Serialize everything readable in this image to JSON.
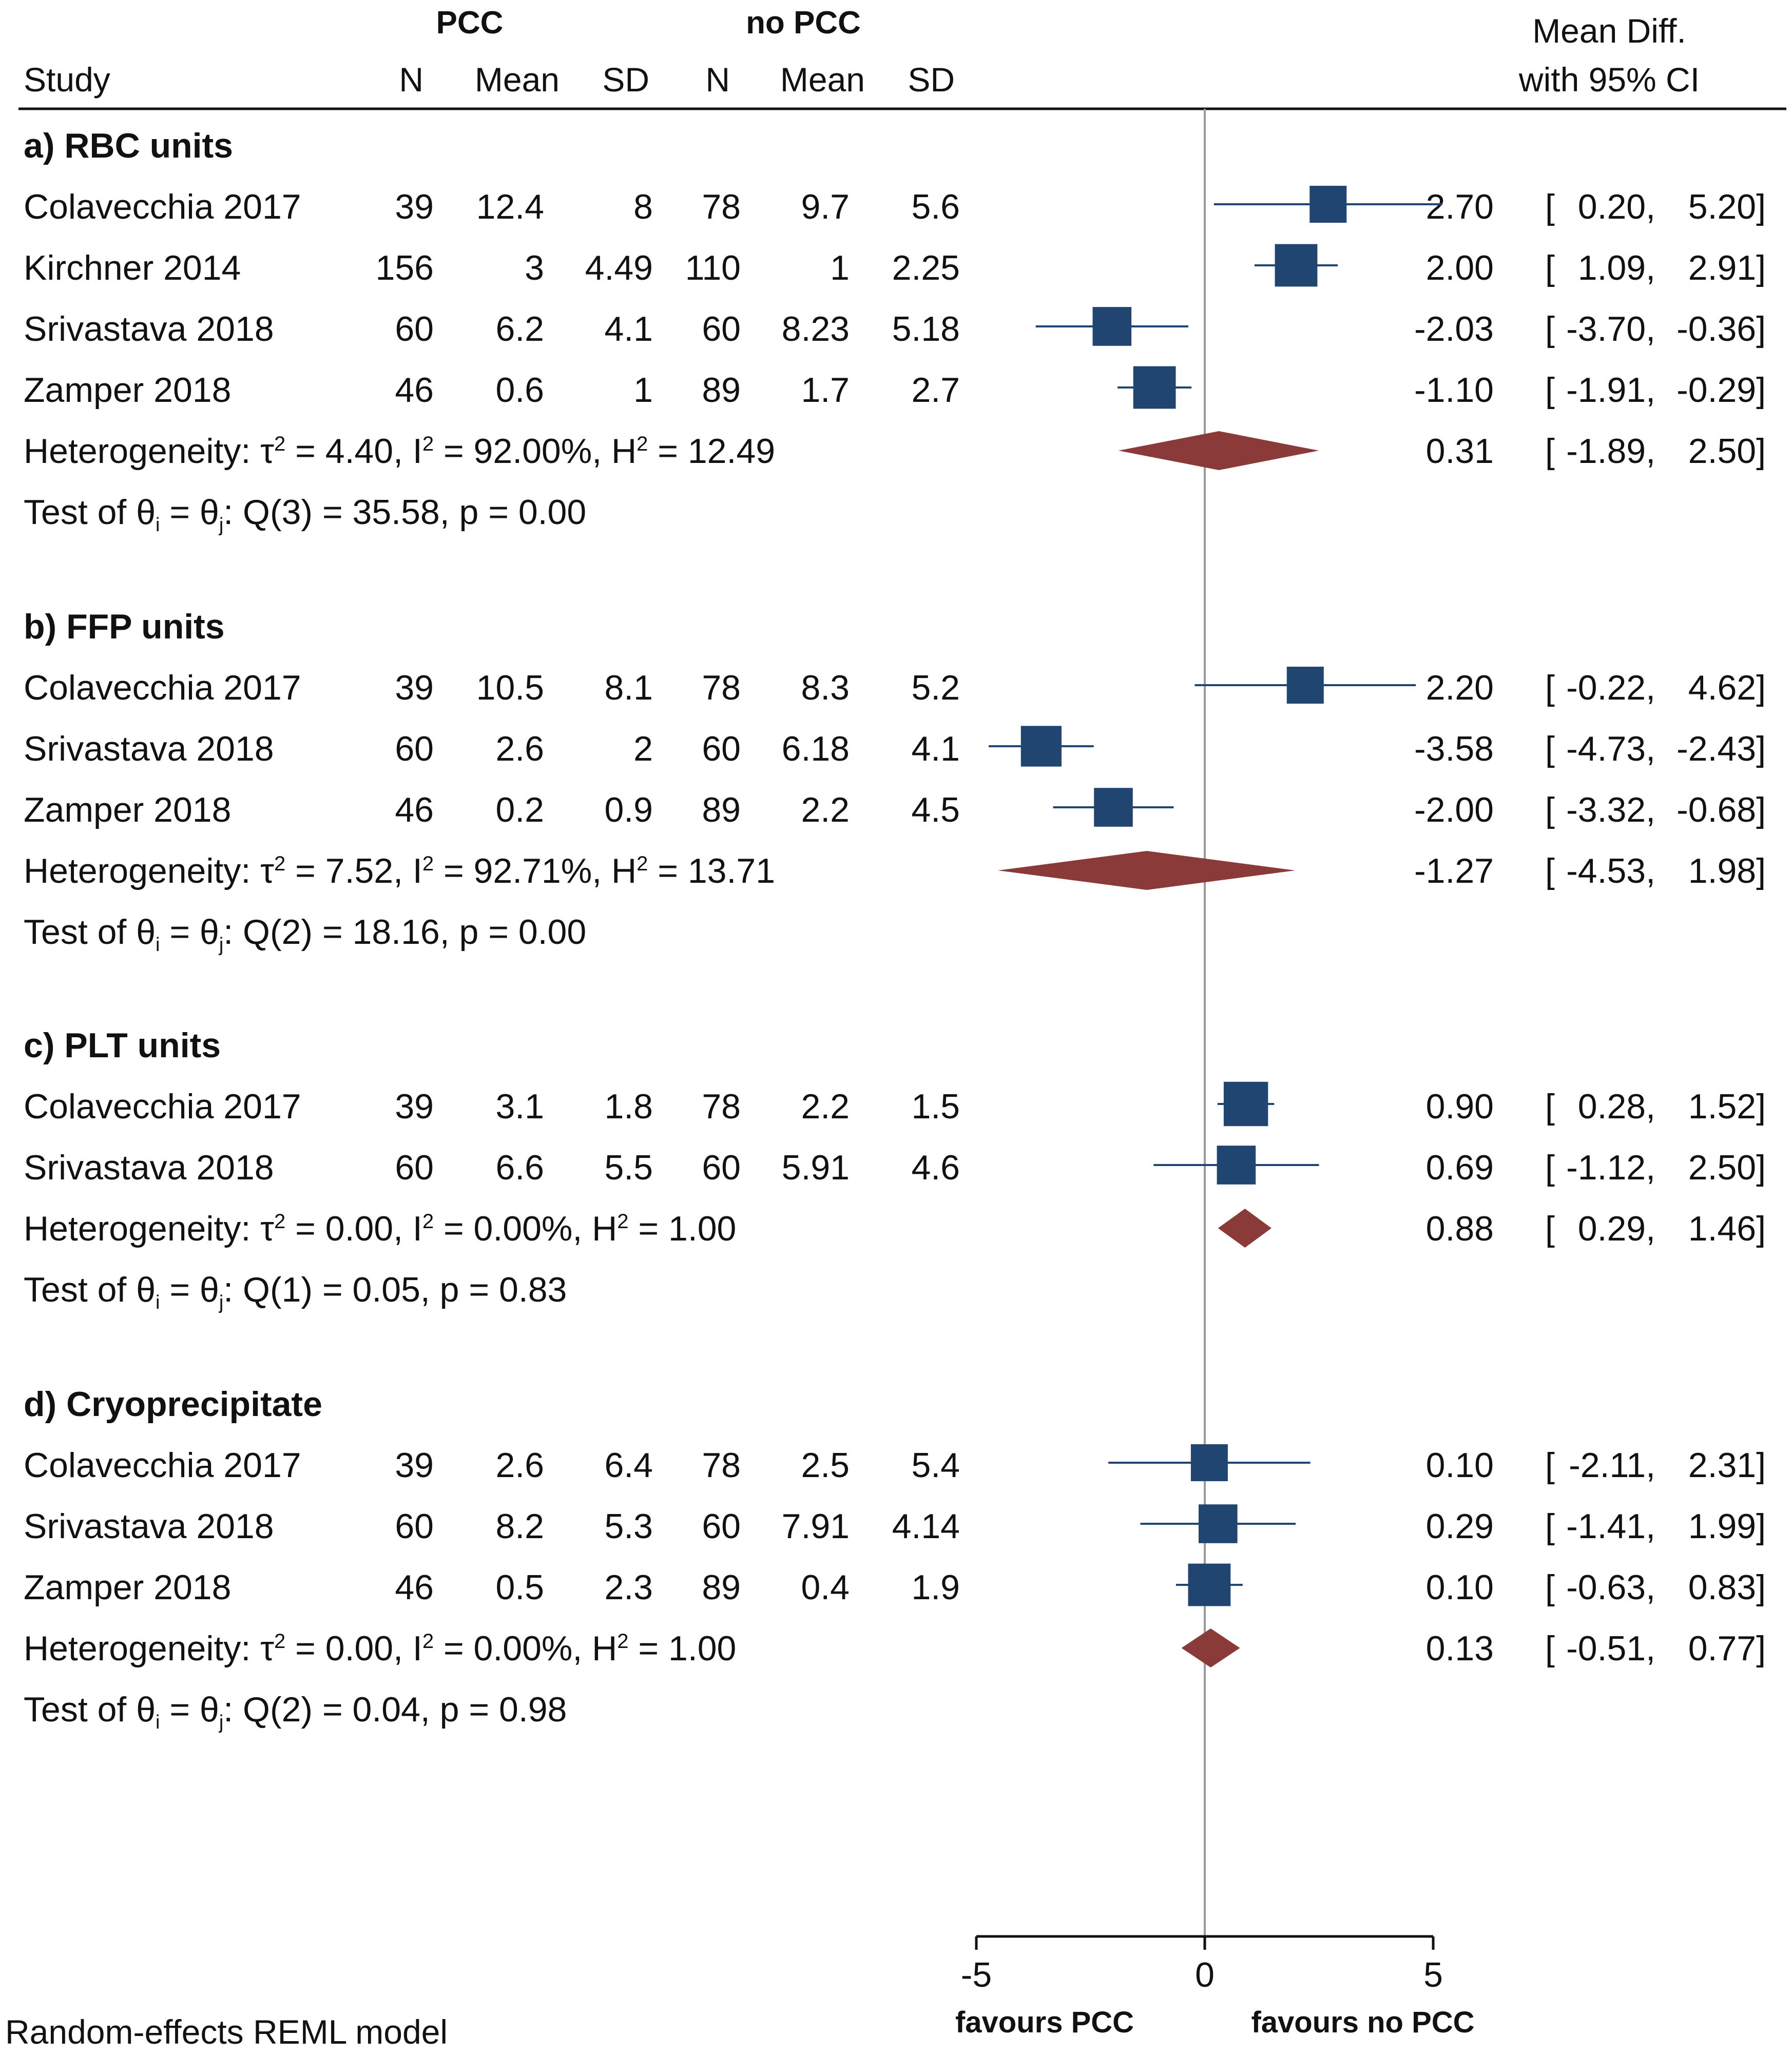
{
  "headers": {
    "pcc_group": "PCC",
    "nopcc_group": "no PCC",
    "study": "Study",
    "n": "N",
    "mean": "Mean",
    "sd": "SD",
    "effect_line1": "Mean Diff.",
    "effect_line2": "with 95% CI"
  },
  "footer": {
    "model_note": "Random-effects REML model",
    "favours_left": "favours PCC",
    "favours_right": "favours no PCC"
  },
  "colors": {
    "square": "#1f4570",
    "ci_line": "#1f4570",
    "diamond": "#8b3a3a",
    "null_line": "#9a9a9a",
    "axis": "#111111"
  },
  "chart_data": {
    "type": "forest",
    "measure": "Mean Diff. with 95% CI",
    "model": "Random-effects REML model",
    "xlim": [
      -5,
      5
    ],
    "xticks": [
      -5,
      0,
      5
    ],
    "null_value": 0,
    "groups": [
      {
        "title": "a) RBC units",
        "studies": [
          {
            "name": "Colavecchia 2017",
            "n1": "39",
            "mean1": "12.4",
            "sd1": "8",
            "n2": "78",
            "mean2": "9.7",
            "sd2": "5.6",
            "est": 2.7,
            "lo": 0.2,
            "hi": 5.2,
            "est_text": "2.70",
            "lo_text": "0.20,",
            "hi_text": "5.20]",
            "box": 1.0
          },
          {
            "name": "Kirchner 2014",
            "n1": "156",
            "mean1": "3",
            "sd1": "4.49",
            "n2": "110",
            "mean2": "1",
            "sd2": "2.25",
            "est": 2.0,
            "lo": 1.09,
            "hi": 2.91,
            "est_text": "2.00",
            "lo_text": "1.09,",
            "hi_text": "2.91]",
            "box": 1.15
          },
          {
            "name": "Srivastava 2018",
            "n1": "60",
            "mean1": "6.2",
            "sd1": "4.1",
            "n2": "60",
            "mean2": "8.23",
            "sd2": "5.18",
            "est": -2.03,
            "lo": -3.7,
            "hi": -0.36,
            "est_text": "-2.03",
            "lo_text": "-3.70,",
            "hi_text": "-0.36]",
            "box": 1.05
          },
          {
            "name": "Zamper 2018",
            "n1": "46",
            "mean1": "0.6",
            "sd1": "1",
            "n2": "89",
            "mean2": "1.7",
            "sd2": "2.7",
            "est": -1.1,
            "lo": -1.91,
            "hi": -0.29,
            "est_text": "-1.10",
            "lo_text": "-1.91,",
            "hi_text": "-0.29]",
            "box": 1.15
          }
        ],
        "pooled": {
          "est": 0.31,
          "lo": -1.89,
          "hi": 2.5,
          "est_text": "0.31",
          "lo_text": "-1.89,",
          "hi_text": "2.50]"
        },
        "heterogeneity": {
          "prefix": "Heterogeneity: τ",
          "tau_sup": "2",
          "tau_eq": " = 4.40, I",
          "i_sup": "2",
          "i_eq": " = 92.00%, H",
          "h_sup": "2",
          "h_eq": " = 12.49"
        },
        "test": {
          "prefix": "Test of θ",
          "sub_i": "i",
          "mid": " = θ",
          "sub_j": "j",
          "tail": ": Q(3) = 35.58, p = 0.00"
        }
      },
      {
        "title": "b) FFP units",
        "studies": [
          {
            "name": "Colavecchia 2017",
            "n1": "39",
            "mean1": "10.5",
            "sd1": "8.1",
            "n2": "78",
            "mean2": "8.3",
            "sd2": "5.2",
            "est": 2.2,
            "lo": -0.22,
            "hi": 4.62,
            "est_text": "2.20",
            "lo_text": "-0.22,",
            "hi_text": "4.62]",
            "box": 1.0
          },
          {
            "name": "Srivastava 2018",
            "n1": "60",
            "mean1": "2.6",
            "sd1": "2",
            "n2": "60",
            "mean2": "6.18",
            "sd2": "4.1",
            "est": -3.58,
            "lo": -4.73,
            "hi": -2.43,
            "est_text": "-3.58",
            "lo_text": "-4.73,",
            "hi_text": "-2.43]",
            "box": 1.1
          },
          {
            "name": "Zamper 2018",
            "n1": "46",
            "mean1": "0.2",
            "sd1": "0.9",
            "n2": "89",
            "mean2": "2.2",
            "sd2": "4.5",
            "est": -2.0,
            "lo": -3.32,
            "hi": -0.68,
            "est_text": "-2.00",
            "lo_text": "-3.32,",
            "hi_text": "-0.68]",
            "box": 1.05
          }
        ],
        "pooled": {
          "est": -1.27,
          "lo": -4.53,
          "hi": 1.98,
          "est_text": "-1.27",
          "lo_text": "-4.53,",
          "hi_text": "1.98]"
        },
        "heterogeneity": {
          "prefix": "Heterogeneity: τ",
          "tau_sup": "2",
          "tau_eq": " = 7.52, I",
          "i_sup": "2",
          "i_eq": " = 92.71%, H",
          "h_sup": "2",
          "h_eq": " = 13.71"
        },
        "test": {
          "prefix": "Test of θ",
          "sub_i": "i",
          "mid": " = θ",
          "sub_j": "j",
          "tail": ": Q(2) = 18.16, p = 0.00"
        }
      },
      {
        "title": "c) PLT units",
        "studies": [
          {
            "name": "Colavecchia 2017",
            "n1": "39",
            "mean1": "3.1",
            "sd1": "1.8",
            "n2": "78",
            "mean2": "2.2",
            "sd2": "1.5",
            "est": 0.9,
            "lo": 0.28,
            "hi": 1.52,
            "est_text": "0.90",
            "lo_text": "0.28,",
            "hi_text": "1.52]",
            "box": 1.2
          },
          {
            "name": "Srivastava 2018",
            "n1": "60",
            "mean1": "6.6",
            "sd1": "5.5",
            "n2": "60",
            "mean2": "5.91",
            "sd2": "4.6",
            "est": 0.69,
            "lo": -1.12,
            "hi": 2.5,
            "est_text": "0.69",
            "lo_text": "-1.12,",
            "hi_text": "2.50]",
            "box": 1.05
          }
        ],
        "pooled": {
          "est": 0.88,
          "lo": 0.29,
          "hi": 1.46,
          "est_text": "0.88",
          "lo_text": "0.29,",
          "hi_text": "1.46]"
        },
        "heterogeneity": {
          "prefix": "Heterogeneity: τ",
          "tau_sup": "2",
          "tau_eq": " = 0.00, I",
          "i_sup": "2",
          "i_eq": " = 0.00%, H",
          "h_sup": "2",
          "h_eq": " = 1.00"
        },
        "test": {
          "prefix": "Test of θ",
          "sub_i": "i",
          "mid": " = θ",
          "sub_j": "j",
          "tail": ": Q(1) = 0.05, p = 0.83"
        }
      },
      {
        "title": "d) Cryoprecipitate",
        "studies": [
          {
            "name": "Colavecchia 2017",
            "n1": "39",
            "mean1": "2.6",
            "sd1": "6.4",
            "n2": "78",
            "mean2": "2.5",
            "sd2": "5.4",
            "est": 0.1,
            "lo": -2.11,
            "hi": 2.31,
            "est_text": "0.10",
            "lo_text": "-2.11,",
            "hi_text": "2.31]",
            "box": 1.0
          },
          {
            "name": "Srivastava 2018",
            "n1": "60",
            "mean1": "8.2",
            "sd1": "5.3",
            "n2": "60",
            "mean2": "7.91",
            "sd2": "4.14",
            "est": 0.29,
            "lo": -1.41,
            "hi": 1.99,
            "est_text": "0.29",
            "lo_text": "-1.41,",
            "hi_text": "1.99]",
            "box": 1.05
          },
          {
            "name": "Zamper 2018",
            "n1": "46",
            "mean1": "0.5",
            "sd1": "2.3",
            "n2": "89",
            "mean2": "0.4",
            "sd2": "1.9",
            "est": 0.1,
            "lo": -0.63,
            "hi": 0.83,
            "est_text": "0.10",
            "lo_text": "-0.63,",
            "hi_text": "0.83]",
            "box": 1.15
          }
        ],
        "pooled": {
          "est": 0.13,
          "lo": -0.51,
          "hi": 0.77,
          "est_text": "0.13",
          "lo_text": "-0.51,",
          "hi_text": "0.77]"
        },
        "heterogeneity": {
          "prefix": "Heterogeneity: τ",
          "tau_sup": "2",
          "tau_eq": " = 0.00, I",
          "i_sup": "2",
          "i_eq": " = 0.00%, H",
          "h_sup": "2",
          "h_eq": " = 1.00"
        },
        "test": {
          "prefix": "Test of θ",
          "sub_i": "i",
          "mid": " = θ",
          "sub_j": "j",
          "tail": ": Q(2) = 0.04, p = 0.98"
        }
      }
    ]
  }
}
